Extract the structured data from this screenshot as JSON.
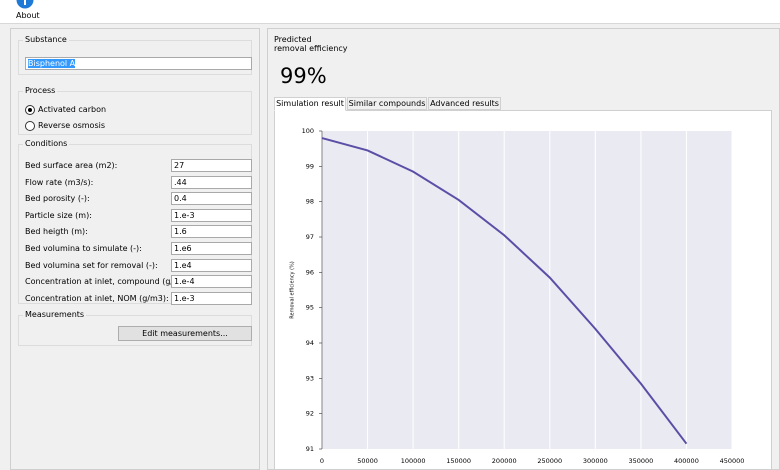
{
  "toolbar": {
    "about": "About"
  },
  "substance": {
    "title": "Substance",
    "value": "Bisphenol A"
  },
  "process": {
    "title": "Process",
    "options": [
      "Activated carbon",
      "Reverse osmosis"
    ],
    "selected": 0
  },
  "conditions": {
    "title": "Conditions",
    "rows": [
      [
        "Bed surface area (m2):",
        "27"
      ],
      [
        "Flow rate (m3/s):",
        ".44"
      ],
      [
        "Bed porosity (-):",
        "0.4"
      ],
      [
        "Particle size (m):",
        "1.e-3"
      ],
      [
        "Bed heigth (m):",
        "1.6"
      ],
      [
        "Bed volumina to simulate (-):",
        "1.e6"
      ],
      [
        "Bed volumina set for removal (-):",
        "1.e4"
      ],
      [
        "Concentration at inlet, compound (g/m3):",
        "1.e-4"
      ],
      [
        "Concentration at inlet, NOM (g/m3):",
        "1.e-3"
      ]
    ]
  },
  "measurements": {
    "title": "Measurements",
    "button": "Edit measurements..."
  },
  "result": {
    "label": [
      "Predicted",
      "removal efficiency"
    ],
    "value": "99%",
    "tabs": [
      "Simulation result",
      "Similar compounds",
      "Advanced results"
    ],
    "active_tab": 0
  },
  "chart_data": {
    "type": "line",
    "y_label": "Removal efficiency (%)",
    "x": [
      0,
      50000,
      100000,
      150000,
      200000,
      250000,
      300000,
      350000,
      400000
    ],
    "series": [
      {
        "color": "#5a4ea6",
        "values": [
          99.8,
          99.45,
          98.85,
          98.05,
          97.05,
          95.85,
          94.4,
          92.85,
          91.15
        ]
      }
    ],
    "xlim": [
      0,
      450000
    ],
    "xticks": [
      0,
      50000,
      100000,
      150000,
      200000,
      250000,
      300000,
      350000,
      400000,
      450000
    ],
    "ylim": [
      91,
      100
    ],
    "yticks": [
      91,
      92,
      93,
      94,
      95,
      96,
      97,
      98,
      99,
      100
    ],
    "grid": true
  }
}
